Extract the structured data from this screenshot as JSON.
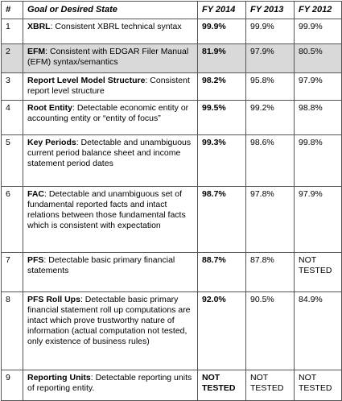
{
  "table": {
    "header": [
      "#",
      "Goal or Desired State",
      "FY 2014",
      "FY 2013",
      "FY 2012"
    ],
    "rows": [
      {
        "number": "1",
        "term": "XBRL",
        "text": ": Consistent XBRL technical syntax",
        "values": [
          "99.9%",
          "99.9%",
          "99.9%"
        ]
      },
      {
        "number": "2",
        "term": "EFM",
        "text": ": Consistent with EDGAR Filer Manual (EFM) syntax/semantics",
        "values": [
          "81.9%",
          "97.9%",
          "80.5%"
        ]
      },
      {
        "number": "3",
        "term": "Report Level Model Structure",
        "text": ": Consistent report level structure",
        "values": [
          "98.2%",
          "95.8%",
          "97.9%"
        ]
      },
      {
        "number": "4",
        "term": "Root Entity",
        "text": ": Detectable economic entity or accounting entity or “entity of focus”",
        "values": [
          "99.5%",
          "99.2%",
          "98.8%"
        ]
      },
      {
        "number": "5",
        "term": "Key Periods",
        "text": ": Detectable and unambiguous current period balance sheet and income statement period dates",
        "values": [
          "99.3%",
          "98.6%",
          "99.8%"
        ]
      },
      {
        "number": "6",
        "term": "FAC",
        "text": ": Detectable and unambiguous set of fundamental reported facts and intact relations between those fundamental facts which is consistent with expectation",
        "values": [
          "98.7%",
          "97.8%",
          "97.9%"
        ]
      },
      {
        "number": "7",
        "term": "PFS",
        "text": ": Detectable basic primary financial statements",
        "values": [
          "88.7%",
          "87.8%",
          "NOT TESTED"
        ]
      },
      {
        "number": "8",
        "term": "PFS Roll Ups",
        "text": ": Detectable basic primary financial statement roll up computations are intact which prove trustworthy nature of information (actual computation not tested, only existence of business rules)",
        "values": [
          "92.0%",
          "90.5%",
          "84.9%"
        ]
      },
      {
        "number": "9",
        "term": "Reporting Units",
        "text": ": Detectable reporting units of reporting entity.",
        "values": [
          "NOT TESTED",
          "NOT TESTED",
          "NOT TESTED"
        ]
      }
    ]
  }
}
